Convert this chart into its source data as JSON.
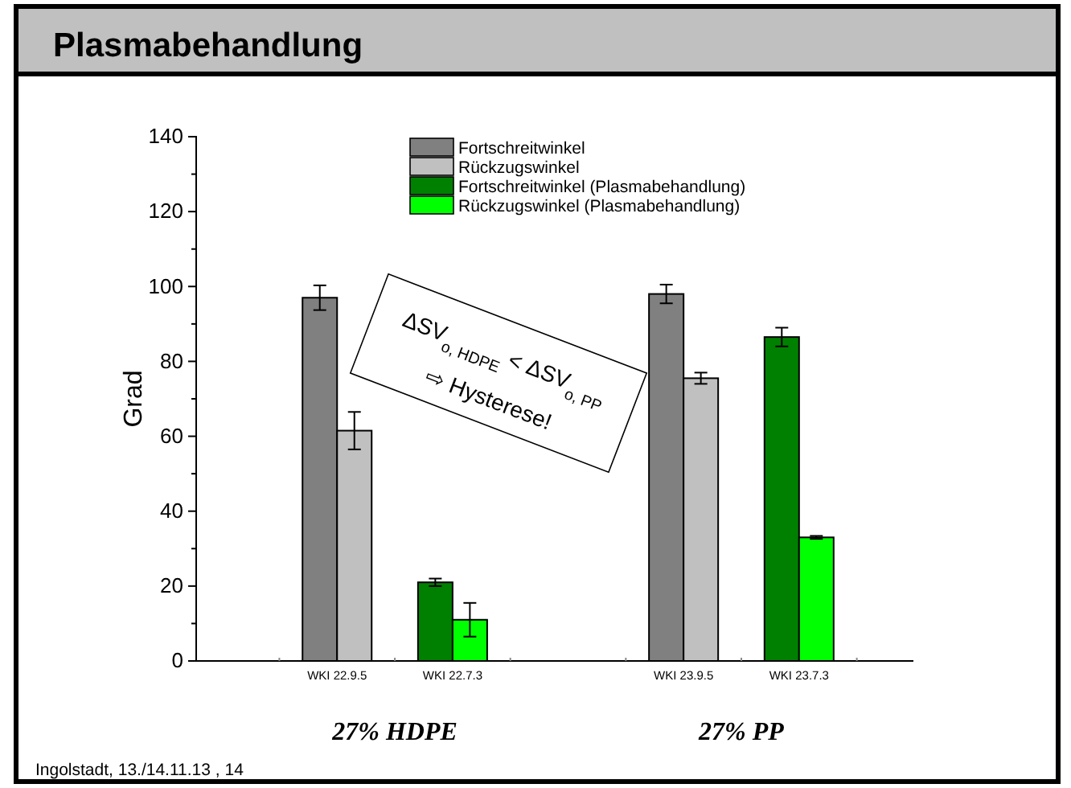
{
  "chart_data": {
    "type": "bar",
    "title": "Plasmabehandlung",
    "ylabel": "Grad",
    "categories": [
      null,
      "WKI 22.9.5",
      "WKI 22.7.3",
      null,
      "WKI 23.9.5",
      "WKI 23.7.3"
    ],
    "series": [
      {
        "name": "Fortschreitwinkel",
        "color": "#808080",
        "values": [
          null,
          97,
          null,
          null,
          98,
          null
        ],
        "errors": [
          null,
          3.3,
          null,
          null,
          2.5,
          null
        ]
      },
      {
        "name": "Rückzugswinkel",
        "color": "#c0c0c0",
        "values": [
          null,
          61.5,
          null,
          null,
          75.5,
          null
        ],
        "errors": [
          null,
          5,
          null,
          null,
          1.5,
          null
        ]
      },
      {
        "name": "Fortschreitwinkel (Plasmabehandlung)",
        "color": "#008000",
        "values": [
          null,
          null,
          21,
          null,
          null,
          86.5
        ],
        "errors": [
          null,
          null,
          1,
          null,
          null,
          2.5
        ]
      },
      {
        "name": "Rückzugswinkel (Plasmabehandlung)",
        "color": "#00ff00",
        "values": [
          null,
          null,
          11,
          null,
          null,
          33
        ],
        "errors": [
          null,
          null,
          4.5,
          null,
          null,
          0.4
        ]
      }
    ],
    "ylim": [
      0,
      140
    ],
    "yticks": [
      0,
      20,
      40,
      60,
      80,
      100,
      120,
      140
    ],
    "grid": false,
    "legend": "top",
    "annotations": [
      "ΔSV$_{o, HDPE}$ < ΔSV$_{o, PP}$",
      "⇨ Hysterese!",
      "27% HDPE",
      "27% PP",
      "Ingolstadt, 13./14.11.13 , 14"
    ]
  }
}
